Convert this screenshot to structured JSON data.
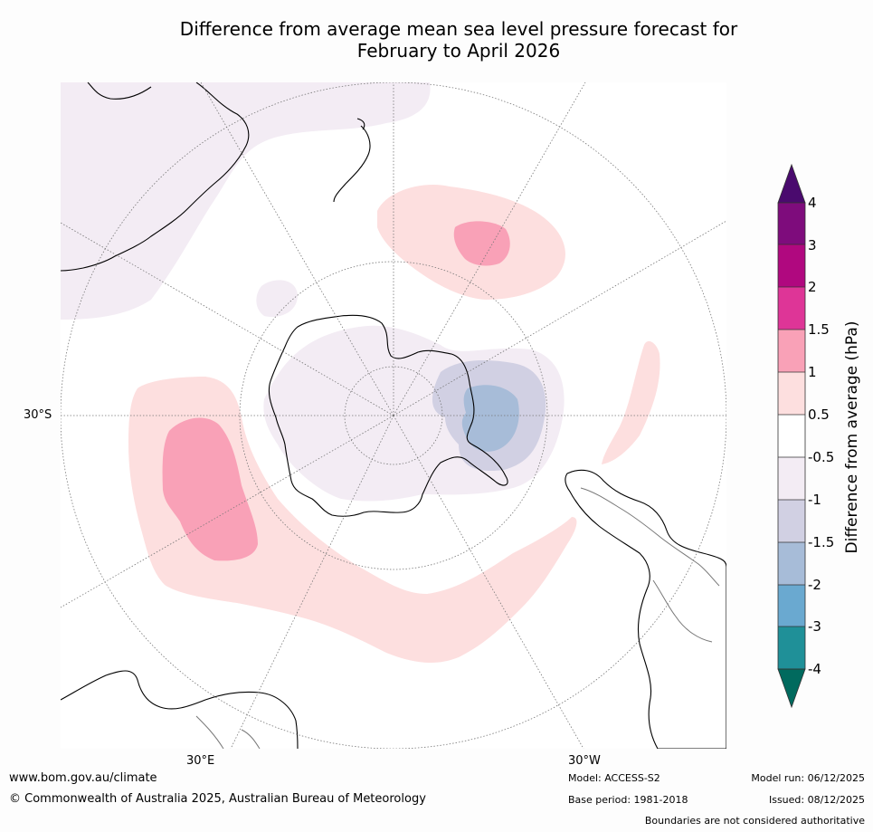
{
  "title": {
    "line1": "Difference from average mean sea level pressure forecast for",
    "line2": "February to April 2026"
  },
  "map": {
    "projection": "south-polar-stereographic",
    "lon_labels": {
      "left": "30°S",
      "bottom_left": "30°E",
      "bottom_right": "30°W"
    },
    "features": [
      "antarctica",
      "south-america",
      "australia",
      "new-zealand",
      "africa",
      "pressure-anomaly-contours"
    ]
  },
  "colorbar": {
    "title": "Difference from average (hPa)",
    "ticks": [
      "4",
      "3",
      "2",
      "1.5",
      "1",
      "0.5",
      "-0.5",
      "-1",
      "-1.5",
      "-2",
      "-3",
      "-4"
    ],
    "colors": {
      "over": "#4a0a6e",
      "3_to_4": "#7e0c7c",
      "2_to_3": "#b0087f",
      "1.5_to_2": "#de3597",
      "1_to_1.5": "#f9a1b7",
      "0.5_to_1": "#fddfdf",
      "-0.5_to_0.5": "#ffffff",
      "-1_to_-0.5": "#f3ecf4",
      "-1.5_to_-1": "#d1d0e3",
      "-2_to_-1.5": "#a7bcd8",
      "-3_to_-2": "#6aa9d0",
      "-4_to_-3": "#1f9098",
      "under": "#016a5e"
    }
  },
  "footer": {
    "url": "www.bom.gov.au/climate",
    "copyright": "© Commonwealth of Australia 2025, Australian Bureau of Meteorology",
    "model": "Model: ACCESS-S2",
    "base_period": "Base period: 1981-2018",
    "model_run": "Model run: 06/12/2025",
    "issued": "Issued: 08/12/2025",
    "disclaimer": "Boundaries are not considered authoritative"
  }
}
